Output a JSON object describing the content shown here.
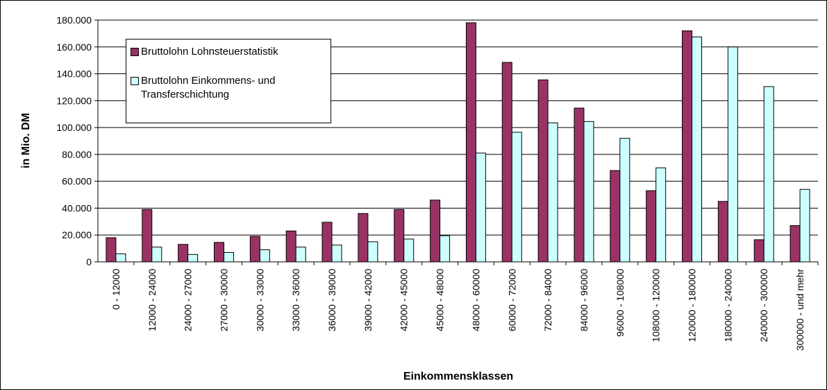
{
  "chart_data": {
    "type": "bar",
    "x_label": "Einkommensklassen",
    "y_label": "in Mio. DM",
    "categories": [
      "0 - 12000",
      "12000 - 24000",
      "24000 - 27000",
      "27000 - 30000",
      "30000 - 33000",
      "33000 - 36000",
      "36000 - 39000",
      "39000 - 42000",
      "42000 - 45000",
      "45000 - 48000",
      "48000 - 60000",
      "60000 - 72000",
      "72000 - 84000",
      "84000 - 96000",
      "96000 - 108000",
      "108000 - 120000",
      "120000 - 180000",
      "180000 - 240000",
      "240000 - 300000",
      "300000 - und mehr"
    ],
    "series": [
      {
        "name": "Bruttolohn Lohnsteuerstatistik",
        "color": "#993366",
        "values": [
          18000,
          39000,
          13000,
          14500,
          19000,
          23000,
          29500,
          36000,
          39000,
          46000,
          178000,
          148500,
          135500,
          114500,
          68000,
          53000,
          172000,
          45000,
          16500,
          27000
        ]
      },
      {
        "name": "Bruttolohn Einkommens- und Transferschichtung",
        "color": "#ccffff",
        "values": [
          6000,
          11000,
          5500,
          7000,
          9000,
          11000,
          12500,
          15000,
          17000,
          19500,
          81000,
          96500,
          103500,
          104500,
          92000,
          70000,
          167500,
          160000,
          130500,
          54000
        ]
      }
    ],
    "ylim": [
      0,
      180000
    ],
    "yticks": [
      0,
      {
        "value": 20000,
        "label": "20.000"
      },
      {
        "value": 40000,
        "label": "40.000"
      },
      {
        "value": 60000,
        "label": "60.000"
      },
      {
        "value": 80000,
        "label": "80.000"
      },
      {
        "value": 100000,
        "label": "100.000"
      },
      {
        "value": 120000,
        "label": "120.000"
      },
      {
        "value": 140000,
        "label": "140.000"
      },
      {
        "value": 160000,
        "label": "160.000"
      },
      {
        "value": 180000,
        "label": "180.000"
      }
    ],
    "grid": true
  }
}
